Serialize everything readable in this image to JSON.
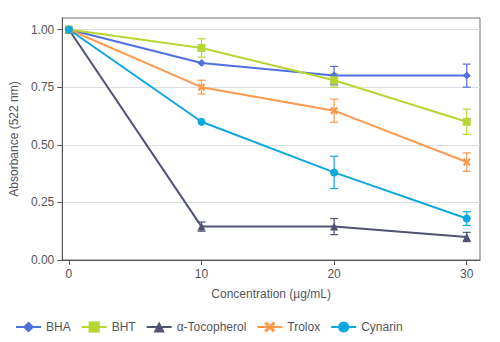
{
  "chart_data": {
    "type": "line",
    "x": [
      0,
      10,
      20,
      30
    ],
    "xlabel": "Concentration (µg/mL)",
    "ylabel": "Absorbance (522 nm)",
    "xlim": [
      -0.5,
      31
    ],
    "ylim": [
      0,
      1.05
    ],
    "xticks": [
      0,
      10,
      20,
      30
    ],
    "yticks": [
      {
        "value": 0,
        "label": "0.00"
      },
      0.25,
      {
        "value": 0.5,
        "label": "0.50"
      },
      0.75,
      {
        "value": 1.0,
        "label": "1.00"
      }
    ],
    "grid": "y",
    "legend": "lower left",
    "series": [
      {
        "name": "BHA",
        "marker": "diamond",
        "values": [
          1.0,
          0.855,
          0.8,
          0.8
        ],
        "yerr": [
          0.0,
          0.0,
          0.04,
          0.05
        ]
      },
      {
        "name": "BHT",
        "marker": "square",
        "values": [
          1.0,
          0.92,
          0.78,
          0.6
        ],
        "yerr": [
          0.0,
          0.04,
          0.03,
          0.055
        ]
      },
      {
        "name": "α-Tocopherol",
        "marker": "triangle",
        "values": [
          1.0,
          0.145,
          0.145,
          0.1
        ],
        "yerr": [
          0.0,
          0.02,
          0.035,
          0.02
        ]
      },
      {
        "name": "Trolox",
        "marker": "x",
        "values": [
          1.0,
          0.75,
          0.648,
          0.425
        ],
        "yerr": [
          0.0,
          0.03,
          0.05,
          0.04
        ]
      },
      {
        "name": "Cynarin",
        "marker": "circle",
        "values": [
          1.0,
          0.6,
          0.38,
          0.18
        ],
        "yerr": [
          0.0,
          0.0,
          0.07,
          0.03
        ]
      }
    ]
  }
}
